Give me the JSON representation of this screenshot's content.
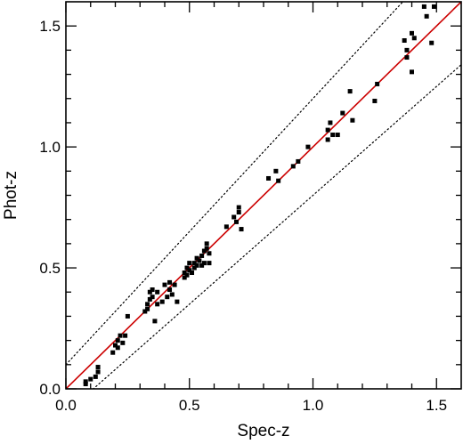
{
  "chart_data": {
    "type": "scatter",
    "title": "",
    "xlabel": "Spec-z",
    "ylabel": "Phot-z",
    "xlim": [
      0.0,
      1.6
    ],
    "ylim": [
      0.0,
      1.6
    ],
    "xticks": [
      "0.0",
      "0.5",
      "1.0",
      "1.5"
    ],
    "yticks": [
      "0.0",
      "0.5",
      "1.0",
      "1.5"
    ],
    "grid": false,
    "colors": {
      "points": "#000000",
      "one_to_one_line": "#cc0000",
      "bound_lines": "#000000"
    },
    "lines": [
      {
        "name": "one-to-one",
        "style": "solid",
        "slope": 1.0,
        "intercept": 0.0
      },
      {
        "name": "upper-bound",
        "style": "dotted",
        "slope": 1.1,
        "intercept": 0.1
      },
      {
        "name": "lower-bound",
        "style": "dotted",
        "slope": 0.9,
        "intercept": -0.1
      }
    ],
    "points": [
      [
        0.08,
        0.02
      ],
      [
        0.08,
        0.03
      ],
      [
        0.1,
        0.04
      ],
      [
        0.12,
        0.05
      ],
      [
        0.13,
        0.07
      ],
      [
        0.13,
        0.09
      ],
      [
        0.19,
        0.15
      ],
      [
        0.2,
        0.18
      ],
      [
        0.21,
        0.17
      ],
      [
        0.21,
        0.2
      ],
      [
        0.22,
        0.22
      ],
      [
        0.23,
        0.19
      ],
      [
        0.24,
        0.22
      ],
      [
        0.25,
        0.3
      ],
      [
        0.32,
        0.32
      ],
      [
        0.33,
        0.33
      ],
      [
        0.33,
        0.35
      ],
      [
        0.34,
        0.37
      ],
      [
        0.34,
        0.4
      ],
      [
        0.35,
        0.41
      ],
      [
        0.35,
        0.38
      ],
      [
        0.36,
        0.28
      ],
      [
        0.37,
        0.35
      ],
      [
        0.37,
        0.4
      ],
      [
        0.39,
        0.36
      ],
      [
        0.4,
        0.43
      ],
      [
        0.41,
        0.38
      ],
      [
        0.42,
        0.41
      ],
      [
        0.42,
        0.44
      ],
      [
        0.43,
        0.39
      ],
      [
        0.44,
        0.43
      ],
      [
        0.45,
        0.36
      ],
      [
        0.48,
        0.46
      ],
      [
        0.48,
        0.48
      ],
      [
        0.49,
        0.47
      ],
      [
        0.49,
        0.5
      ],
      [
        0.5,
        0.49
      ],
      [
        0.5,
        0.52
      ],
      [
        0.51,
        0.48
      ],
      [
        0.52,
        0.5
      ],
      [
        0.52,
        0.52
      ],
      [
        0.53,
        0.51
      ],
      [
        0.53,
        0.54
      ],
      [
        0.54,
        0.53
      ],
      [
        0.55,
        0.51
      ],
      [
        0.55,
        0.55
      ],
      [
        0.56,
        0.52
      ],
      [
        0.56,
        0.57
      ],
      [
        0.57,
        0.58
      ],
      [
        0.57,
        0.6
      ],
      [
        0.58,
        0.52
      ],
      [
        0.58,
        0.56
      ],
      [
        0.65,
        0.67
      ],
      [
        0.68,
        0.71
      ],
      [
        0.69,
        0.69
      ],
      [
        0.7,
        0.73
      ],
      [
        0.7,
        0.75
      ],
      [
        0.71,
        0.66
      ],
      [
        0.82,
        0.87
      ],
      [
        0.85,
        0.9
      ],
      [
        0.86,
        0.86
      ],
      [
        0.92,
        0.92
      ],
      [
        0.94,
        0.94
      ],
      [
        0.98,
        1.0
      ],
      [
        1.06,
        1.03
      ],
      [
        1.06,
        1.07
      ],
      [
        1.07,
        1.1
      ],
      [
        1.08,
        1.05
      ],
      [
        1.1,
        1.05
      ],
      [
        1.12,
        1.14
      ],
      [
        1.15,
        1.23
      ],
      [
        1.16,
        1.11
      ],
      [
        1.25,
        1.19
      ],
      [
        1.26,
        1.26
      ],
      [
        1.37,
        1.44
      ],
      [
        1.38,
        1.37
      ],
      [
        1.38,
        1.4
      ],
      [
        1.4,
        1.31
      ],
      [
        1.4,
        1.47
      ],
      [
        1.41,
        1.45
      ],
      [
        1.45,
        1.58
      ],
      [
        1.46,
        1.54
      ],
      [
        1.48,
        1.43
      ],
      [
        1.49,
        1.58
      ]
    ]
  }
}
